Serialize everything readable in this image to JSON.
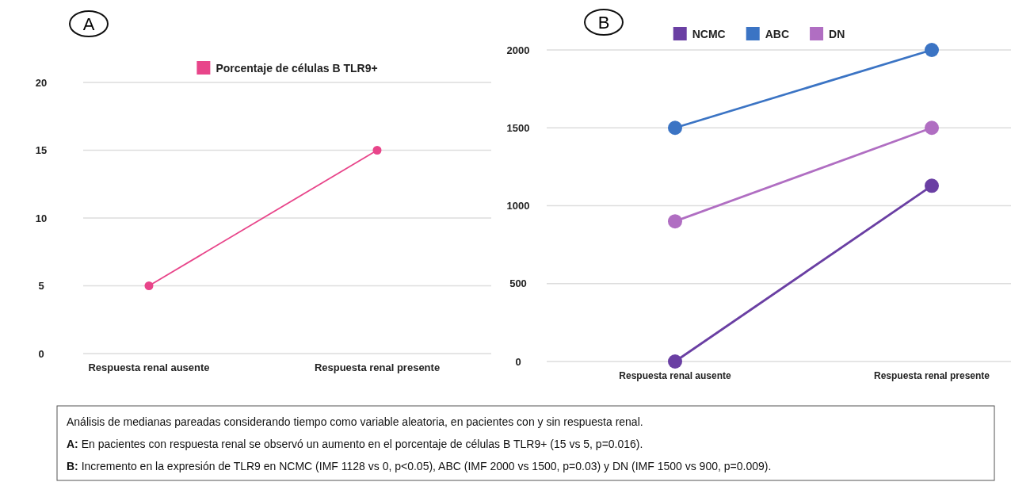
{
  "chart_data": [
    {
      "type": "line",
      "title": "A",
      "categories": [
        "Respuesta renal ausente",
        "Respuesta renal presente"
      ],
      "series": [
        {
          "name": "Porcentaje de células B TLR9+",
          "color": "#e8458a",
          "values": [
            5,
            15
          ]
        }
      ],
      "ylim": [
        0,
        20
      ],
      "yticks": [
        0,
        5,
        10,
        15,
        20
      ],
      "grid": "y",
      "legend": "top",
      "marker": "circle",
      "annotations": [
        "Análisis de medianas pareadas considerando tiempo como variable aleatoria, en pacientes con y sin respuesta renal.",
        "A: En pacientes con respuesta renal se observó un aumento en el porcentaje de células B TLR9+ (15 vs 5, p=0.016)."
      ]
    },
    {
      "type": "line",
      "title": "B",
      "categories": [
        "Respuesta renal ausente",
        "Respuesta renal presente"
      ],
      "series": [
        {
          "name": "NCMC",
          "color": "#6a3fa3",
          "values": [
            0,
            1128
          ]
        },
        {
          "name": "ABC",
          "color": "#3b74c4",
          "values": [
            1500,
            2000
          ]
        },
        {
          "name": "DN",
          "color": "#b06ec2",
          "values": [
            900,
            1500
          ]
        }
      ],
      "ylim": [
        0,
        2000
      ],
      "yticks": [
        0,
        500,
        1000,
        1500,
        2000
      ],
      "grid": "y",
      "legend": "top",
      "marker": "circle",
      "annotations": [
        "B: Incremento en la expresión de TLR9 en NCMC (IMF 1128 vs 0, p<0.05), ABC (IMF 2000 vs 1500, p=0.03) y DN (IMF 1500 vs 900, p=0.009)."
      ]
    }
  ]
}
